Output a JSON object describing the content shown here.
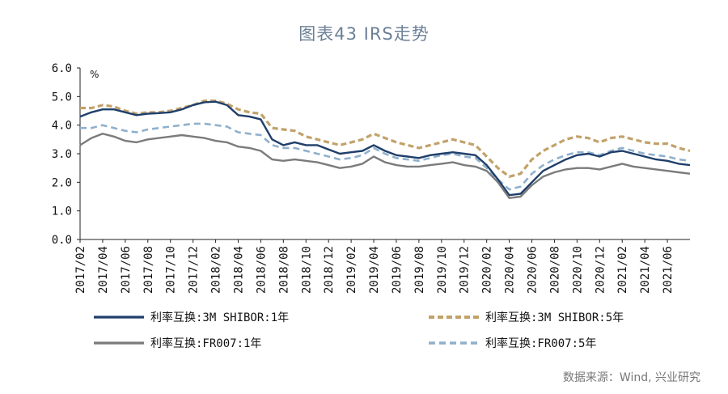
{
  "title": "图表43 IRS走势",
  "source": "数据来源：Wind, 兴业研究",
  "chart_data": {
    "type": "line",
    "title": "图表43 IRS走势",
    "unit": "%",
    "ylim": [
      0.0,
      6.0
    ],
    "yticks": [
      "0.0",
      "1.0",
      "2.0",
      "3.0",
      "4.0",
      "5.0",
      "6.0"
    ],
    "xlim": [
      "2017-02",
      "2021-08"
    ],
    "xticks": [
      "2017/02",
      "2017/04",
      "2017/06",
      "2017/08",
      "2017/10",
      "2017/12",
      "2018/02",
      "2018/04",
      "2018/06",
      "2018/08",
      "2018/10",
      "2018/12",
      "2019/02",
      "2019/04",
      "2019/06",
      "2019/08",
      "2019/10",
      "2019/12",
      "2020/02",
      "2020/04",
      "2020/06",
      "2020/08",
      "2020/10",
      "2020/12",
      "2021/02",
      "2021/04",
      "2021/06"
    ],
    "x": [
      "2017-02",
      "2017-03",
      "2017-04",
      "2017-05",
      "2017-06",
      "2017-07",
      "2017-08",
      "2017-09",
      "2017-10",
      "2017-11",
      "2017-12",
      "2018-01",
      "2018-02",
      "2018-03",
      "2018-04",
      "2018-05",
      "2018-06",
      "2018-07",
      "2018-08",
      "2018-09",
      "2018-10",
      "2018-11",
      "2018-12",
      "2019-01",
      "2019-02",
      "2019-03",
      "2019-04",
      "2019-05",
      "2019-06",
      "2019-07",
      "2019-08",
      "2019-09",
      "2019-10",
      "2019-11",
      "2019-12",
      "2020-01",
      "2020-02",
      "2020-03",
      "2020-04",
      "2020-05",
      "2020-06",
      "2020-07",
      "2020-08",
      "2020-09",
      "2020-10",
      "2020-11",
      "2020-12",
      "2021-01",
      "2021-02",
      "2021-03",
      "2021-04",
      "2021-05",
      "2021-06",
      "2021-07",
      "2021-08"
    ],
    "series": [
      {
        "name": "利率互换:3M SHIBOR:1年",
        "color": "#1f3f6b",
        "style": "solid",
        "values": [
          4.3,
          4.45,
          4.55,
          4.55,
          4.45,
          4.35,
          4.4,
          4.42,
          4.45,
          4.55,
          4.7,
          4.8,
          4.82,
          4.7,
          4.35,
          4.3,
          4.2,
          3.5,
          3.3,
          3.4,
          3.3,
          3.3,
          3.15,
          3.0,
          3.05,
          3.1,
          3.3,
          3.1,
          2.95,
          2.9,
          2.85,
          2.95,
          3.0,
          3.05,
          3.0,
          2.95,
          2.6,
          2.1,
          1.55,
          1.6,
          2.0,
          2.4,
          2.6,
          2.8,
          2.95,
          3.0,
          2.9,
          3.05,
          3.1,
          3.0,
          2.9,
          2.8,
          2.75,
          2.65,
          2.6
        ]
      },
      {
        "name": "利率互换:3M SHIBOR:5年",
        "color": "#c2a26a",
        "style": "dashed-bold",
        "values": [
          4.6,
          4.6,
          4.7,
          4.65,
          4.5,
          4.4,
          4.45,
          4.45,
          4.5,
          4.6,
          4.7,
          4.85,
          4.85,
          4.75,
          4.55,
          4.45,
          4.4,
          3.9,
          3.85,
          3.8,
          3.6,
          3.5,
          3.4,
          3.3,
          3.4,
          3.5,
          3.7,
          3.55,
          3.4,
          3.3,
          3.2,
          3.3,
          3.4,
          3.5,
          3.4,
          3.3,
          2.9,
          2.5,
          2.2,
          2.3,
          2.8,
          3.1,
          3.3,
          3.5,
          3.6,
          3.55,
          3.4,
          3.55,
          3.6,
          3.5,
          3.4,
          3.35,
          3.35,
          3.2,
          3.1
        ]
      },
      {
        "name": "利率互换:FR007:1年",
        "color": "#7b7b7b",
        "style": "solid",
        "values": [
          3.3,
          3.55,
          3.7,
          3.6,
          3.45,
          3.4,
          3.5,
          3.55,
          3.6,
          3.65,
          3.6,
          3.55,
          3.45,
          3.4,
          3.25,
          3.2,
          3.1,
          2.8,
          2.75,
          2.8,
          2.75,
          2.7,
          2.6,
          2.5,
          2.55,
          2.65,
          2.9,
          2.7,
          2.6,
          2.55,
          2.55,
          2.6,
          2.65,
          2.7,
          2.6,
          2.55,
          2.4,
          2.0,
          1.45,
          1.5,
          1.9,
          2.2,
          2.35,
          2.45,
          2.5,
          2.5,
          2.45,
          2.55,
          2.65,
          2.55,
          2.5,
          2.45,
          2.4,
          2.35,
          2.3
        ]
      },
      {
        "name": "利率互换:FR007:5年",
        "color": "#8fb0cc",
        "style": "dashed",
        "values": [
          3.9,
          3.9,
          4.0,
          3.9,
          3.8,
          3.75,
          3.85,
          3.9,
          3.95,
          4.0,
          4.05,
          4.05,
          4.0,
          3.95,
          3.75,
          3.7,
          3.65,
          3.3,
          3.2,
          3.2,
          3.1,
          3.0,
          2.9,
          2.8,
          2.85,
          2.95,
          3.2,
          3.0,
          2.85,
          2.8,
          2.75,
          2.85,
          2.95,
          3.0,
          2.9,
          2.85,
          2.5,
          2.1,
          1.75,
          1.85,
          2.3,
          2.6,
          2.8,
          2.95,
          3.05,
          3.05,
          2.95,
          3.1,
          3.2,
          3.1,
          3.0,
          2.95,
          2.9,
          2.8,
          2.75
        ]
      }
    ]
  }
}
